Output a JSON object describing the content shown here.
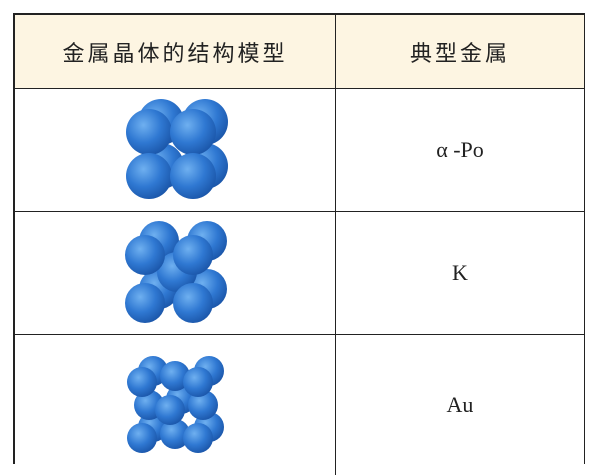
{
  "table": {
    "header": [
      "金属晶体的结构模型",
      "典型金属"
    ],
    "rows": [
      "α -Po",
      "K",
      "Au"
    ]
  }
}
